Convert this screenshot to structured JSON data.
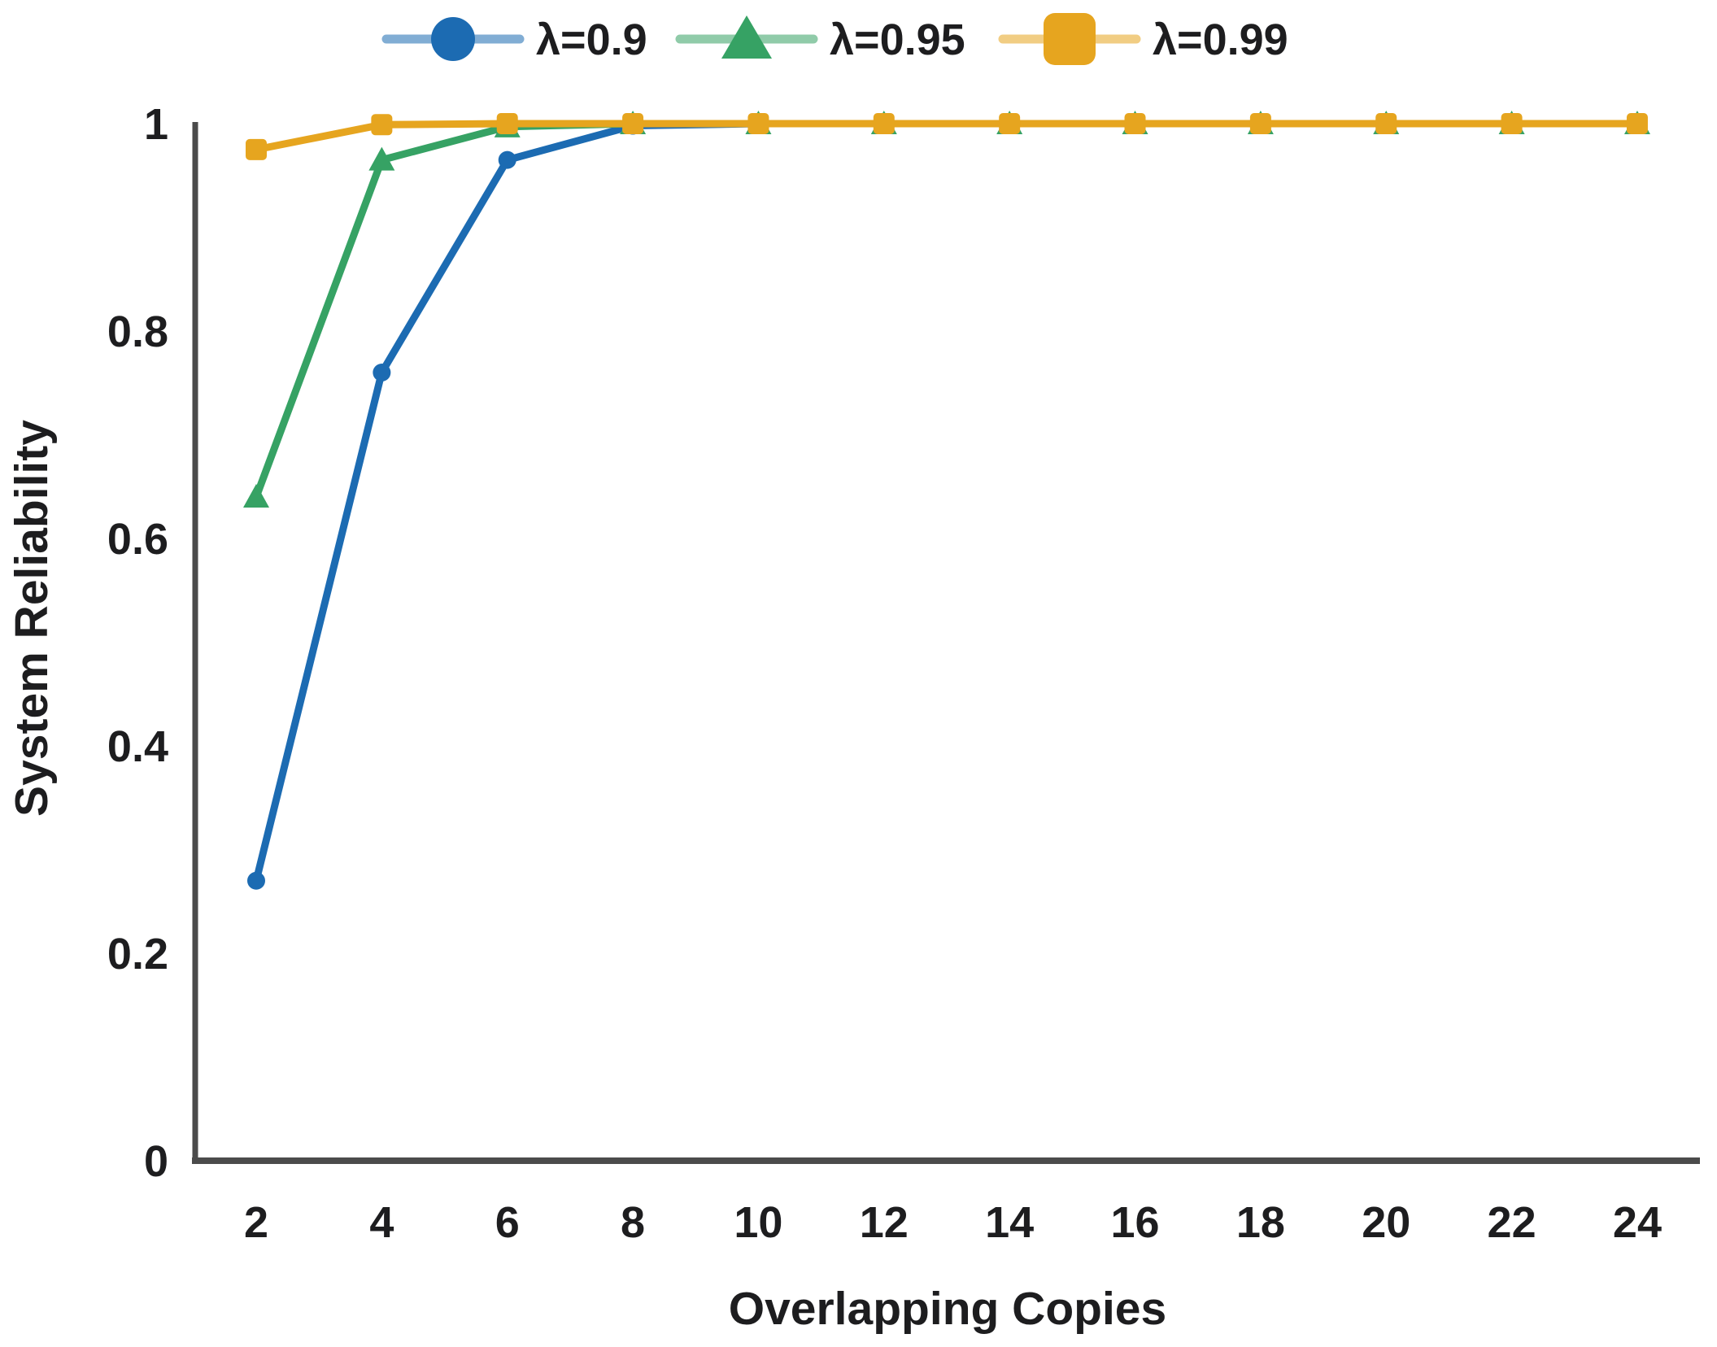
{
  "chart_data": {
    "type": "line",
    "title": "",
    "xlabel": "Overlapping Copies",
    "ylabel": "System Reliability",
    "x": [
      2,
      4,
      6,
      8,
      10,
      12,
      14,
      16,
      18,
      20,
      22,
      24
    ],
    "xtick_labels": [
      "2",
      "4",
      "6",
      "8",
      "10",
      "12",
      "14",
      "16",
      "18",
      "20",
      "22",
      "24"
    ],
    "yticks": [
      0,
      0.2,
      0.4,
      0.6,
      0.8,
      1
    ],
    "ytick_labels": [
      "0",
      "0.2",
      "0.4",
      "0.6",
      "0.8",
      "1"
    ],
    "xlim": [
      1,
      25
    ],
    "ylim": [
      0,
      1
    ],
    "grid": false,
    "legend_position": "top",
    "series": [
      {
        "name": "λ=0.9",
        "marker": "circle",
        "color": "#1c6bb2",
        "values": [
          0.27,
          0.76,
          0.965,
          0.998,
          1,
          1,
          1,
          1,
          1,
          1,
          1,
          1
        ]
      },
      {
        "name": "λ=0.95",
        "marker": "triangle",
        "color": "#36a264",
        "values": [
          0.64,
          0.965,
          0.997,
          1,
          1,
          1,
          1,
          1,
          1,
          1,
          1,
          1
        ]
      },
      {
        "name": "λ=0.99",
        "marker": "square",
        "color": "#e6a51f",
        "values": [
          0.975,
          0.999,
          1,
          1,
          1,
          1,
          1,
          1,
          1,
          1,
          1,
          1
        ]
      }
    ],
    "colors": {
      "axis": "#4b4b4b",
      "text": "#1d1d1f",
      "background": "#ffffff"
    }
  }
}
